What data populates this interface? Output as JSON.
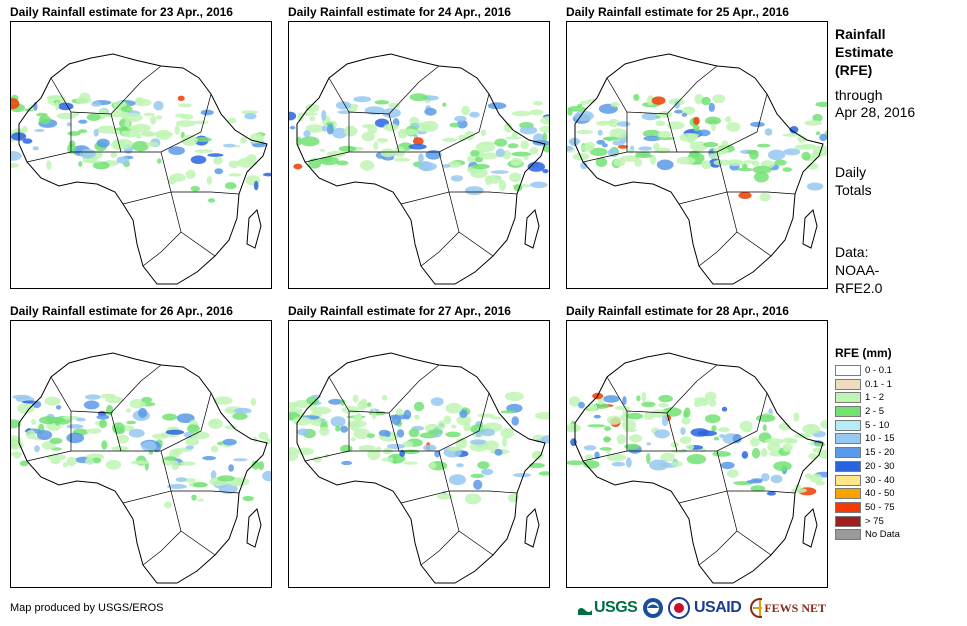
{
  "panels": [
    {
      "title": "Daily Rainfall estimate for 23 Apr., 2016"
    },
    {
      "title": "Daily Rainfall estimate for 24 Apr., 2016"
    },
    {
      "title": "Daily Rainfall estimate for 25 Apr., 2016"
    },
    {
      "title": "Daily Rainfall estimate for 26 Apr., 2016"
    },
    {
      "title": "Daily Rainfall estimate for 27 Apr., 2016"
    },
    {
      "title": "Daily Rainfall estimate for 28 Apr., 2016"
    }
  ],
  "side": {
    "line1": "Rainfall",
    "line2": "Estimate",
    "line3": "(RFE)",
    "line4": "through",
    "line5": "Apr 28, 2016",
    "line6": "Daily",
    "line7": "Totals",
    "line8": "Data:",
    "line9": "NOAA-",
    "line10": "RFE2.0"
  },
  "legend": {
    "title": "RFE (mm)",
    "items": [
      {
        "label": "0 - 0.1",
        "color": "#ffffff"
      },
      {
        "label": "0.1 - 1",
        "color": "#ecdcc0"
      },
      {
        "label": "1 - 2",
        "color": "#bff5b4"
      },
      {
        "label": "2 - 5",
        "color": "#72e272"
      },
      {
        "label": "5 - 10",
        "color": "#b4eef4"
      },
      {
        "label": "10 - 15",
        "color": "#96c8f0"
      },
      {
        "label": "15 - 20",
        "color": "#5a9ae8"
      },
      {
        "label": "20 - 30",
        "color": "#2864e0"
      },
      {
        "label": "30 - 40",
        "color": "#fce68c"
      },
      {
        "label": "40 - 50",
        "color": "#f8a400"
      },
      {
        "label": "50 - 75",
        "color": "#f03c00"
      },
      {
        "label": "> 75",
        "color": "#a01e1e"
      },
      {
        "label": "No Data",
        "color": "#9a9a9a"
      }
    ]
  },
  "footer": {
    "credit": "Map produced by USGS/EROS"
  },
  "logos": {
    "usgs": "USGS",
    "usaid": "USAID",
    "fewsnet": "FEWS NET"
  }
}
